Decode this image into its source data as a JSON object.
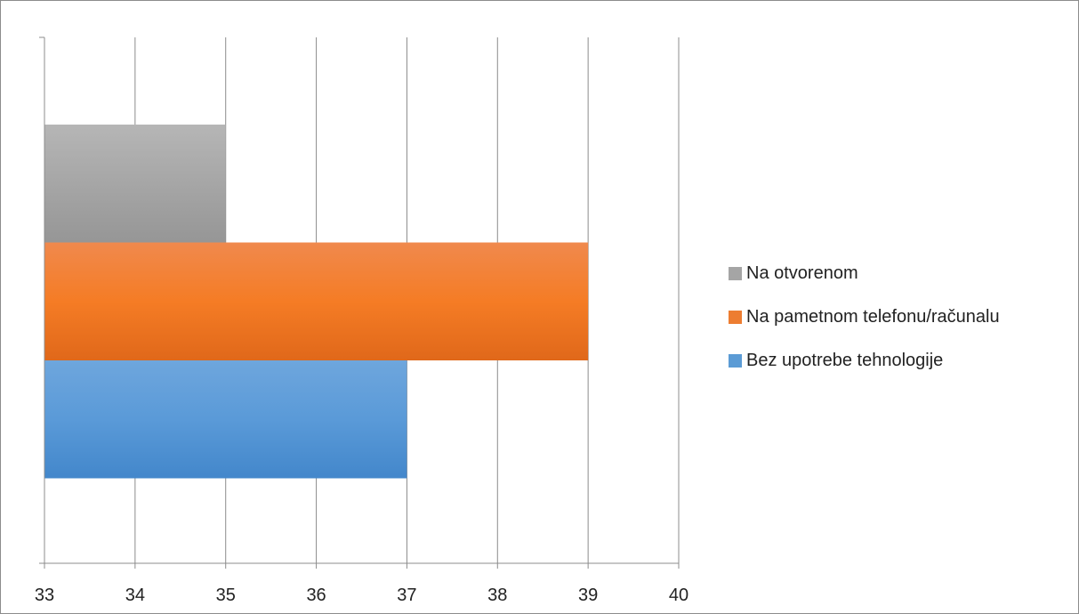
{
  "chart_data": {
    "type": "bar",
    "orientation": "horizontal",
    "title": "",
    "xlabel": "",
    "ylabel": "",
    "xlim": [
      33,
      40
    ],
    "x_ticks": [
      33,
      34,
      35,
      36,
      37,
      38,
      39,
      40
    ],
    "grid": "vertical",
    "legend_position": "right",
    "series": [
      {
        "name": "Na otvorenom",
        "value": 35,
        "color": "#a5a5a5"
      },
      {
        "name": "Na pametnom telefonu/računalu",
        "value": 39,
        "color": "#ed7d31"
      },
      {
        "name": "Bez upotrebe tehnologije",
        "value": 37,
        "color": "#5b9bd5"
      }
    ]
  }
}
